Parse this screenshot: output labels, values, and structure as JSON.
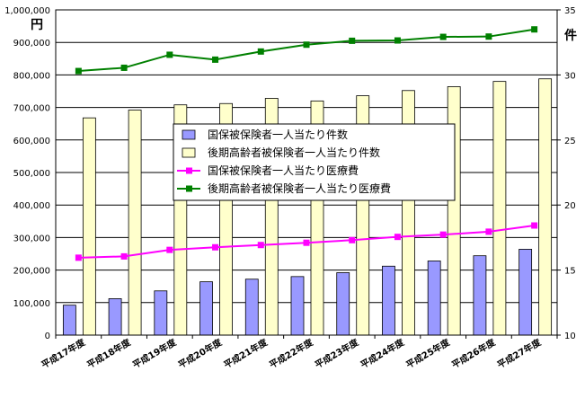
{
  "chart_data": {
    "type": "bar",
    "title": "",
    "left_unit": "円",
    "right_unit": "件",
    "categories": [
      "平成17年度",
      "平成18年度",
      "平成19年度",
      "平成20年度",
      "平成21年度",
      "平成22年度",
      "平成23年度",
      "平成24年度",
      "平成25年度",
      "平成26年度",
      "平成27年度"
    ],
    "y_left": {
      "min": 0,
      "max": 1000000,
      "step": 100000
    },
    "y_right": {
      "min": 10,
      "max": 35,
      "step": 5
    },
    "series": [
      {
        "name": "国保被保険者一人当たり件数",
        "kind": "bar",
        "axis": "right",
        "color": "#9999ff",
        "values": [
          12.3,
          12.8,
          13.4,
          14.1,
          14.3,
          14.5,
          14.8,
          15.3,
          15.7,
          16.1,
          16.6
        ]
      },
      {
        "name": "後期高齢者被保険者一人当たり件数",
        "kind": "bar",
        "axis": "right",
        "color": "#ffffcc",
        "values": [
          26.7,
          27.3,
          27.7,
          27.8,
          28.2,
          28.0,
          28.4,
          28.8,
          29.1,
          29.5,
          29.7
        ]
      },
      {
        "name": "国保被保険者一人当たり医療費",
        "kind": "line",
        "axis": "left",
        "color": "#ff00ff",
        "values": [
          238000,
          242000,
          262000,
          270000,
          277000,
          284000,
          292000,
          302000,
          309000,
          318000,
          337000
        ]
      },
      {
        "name": "後期高齢者被保険者一人当たり医療費",
        "kind": "line",
        "axis": "left",
        "color": "#008000",
        "values": [
          812000,
          822000,
          862000,
          847000,
          872000,
          893000,
          905000,
          906000,
          917000,
          918000,
          940000
        ]
      }
    ],
    "grid": true,
    "legend_position": "center"
  }
}
